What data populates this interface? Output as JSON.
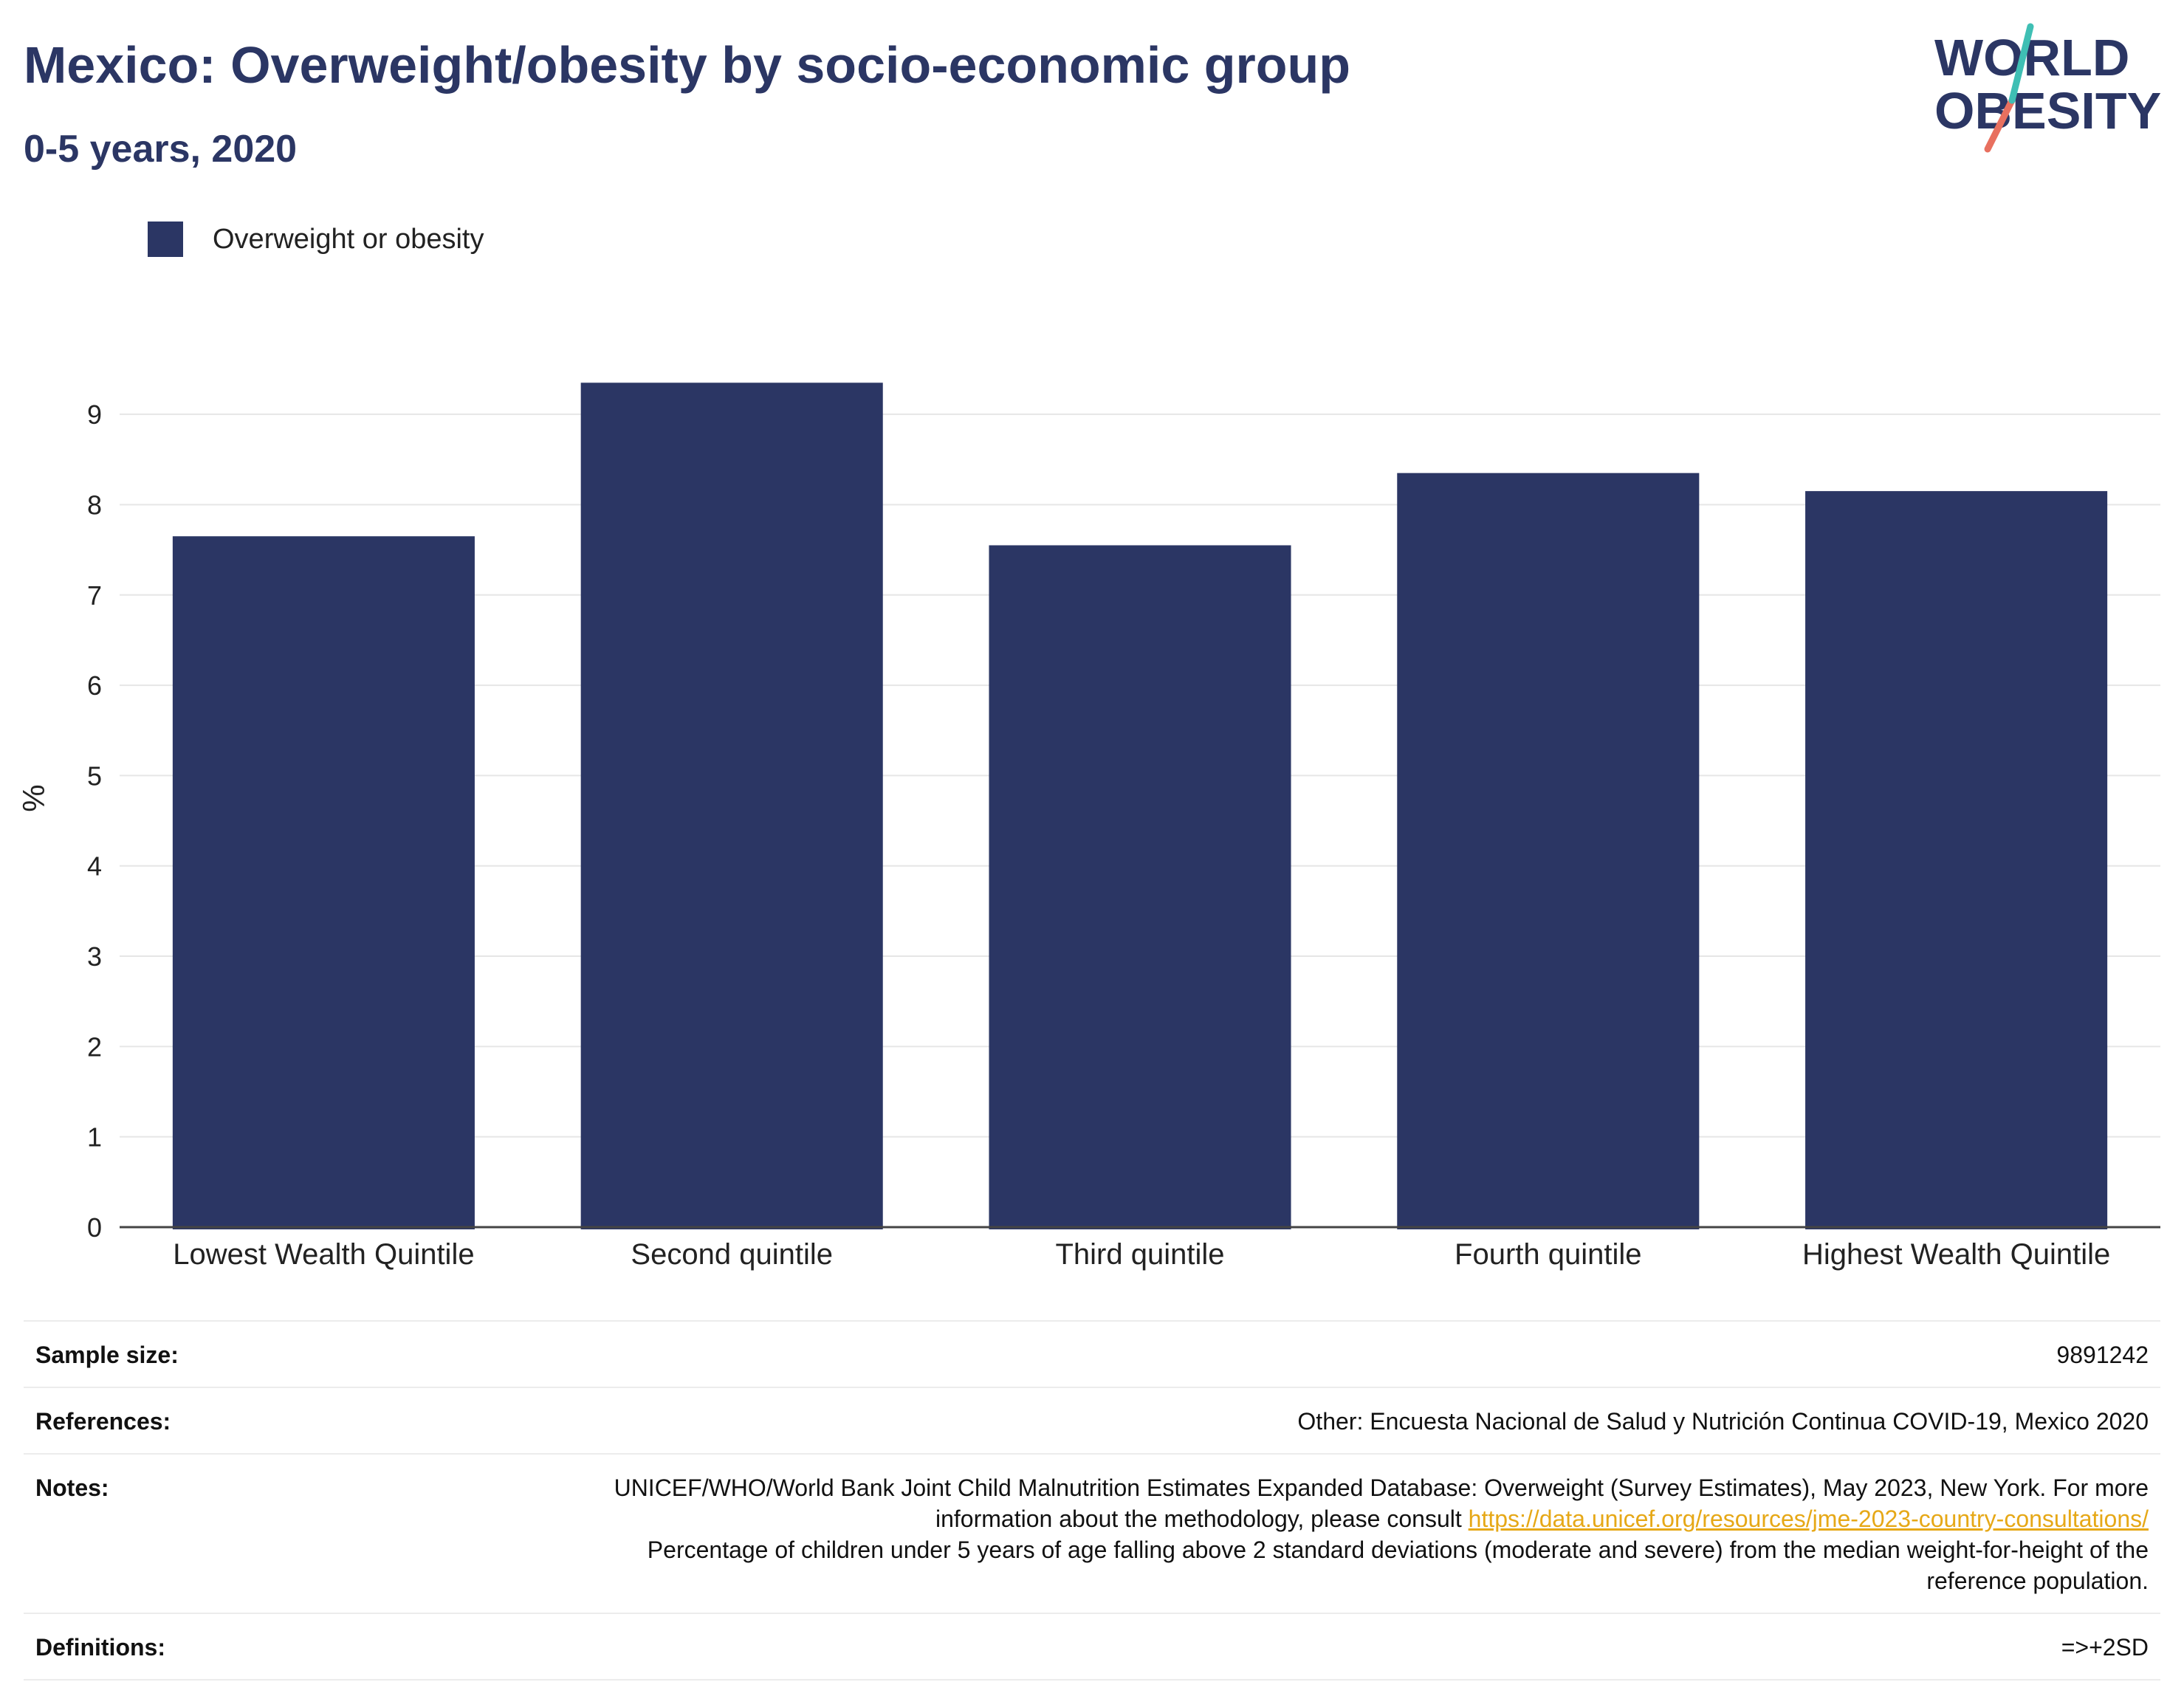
{
  "header": {
    "title": "Mexico: Overweight/obesity by socio-economic group",
    "subtitle": "0-5 years, 2020"
  },
  "logo": {
    "line1": "WORLD",
    "line2": "OBESITY",
    "colors": {
      "navy": "#2b3664",
      "teal": "#3fbfb4",
      "coral": "#e8705f"
    }
  },
  "legend": {
    "label": "Overweight or obesity",
    "color": "#2b3664"
  },
  "chart_data": {
    "type": "bar",
    "title": "Mexico: Overweight/obesity by socio-economic group",
    "subtitle": "0-5 years, 2020",
    "categories": [
      "Lowest Wealth Quintile",
      "Second quintile",
      "Third quintile",
      "Fourth quintile",
      "Highest Wealth Quintile"
    ],
    "series": [
      {
        "name": "Overweight or obesity",
        "values": [
          7.65,
          9.35,
          7.55,
          8.35,
          8.15
        ],
        "color": "#2b3664"
      }
    ],
    "xlabel": "",
    "ylabel": "%",
    "ylim": [
      0,
      9.5
    ],
    "yticks": [
      0,
      1,
      2,
      3,
      4,
      5,
      6,
      7,
      8,
      9
    ],
    "grid": true,
    "legend_position": "top-left"
  },
  "info": {
    "sample_size": {
      "label": "Sample size:",
      "value": "9891242"
    },
    "references": {
      "label": "References:",
      "value": "Other: Encuesta Nacional de Salud y Nutrición Continua COVID-19, Mexico 2020"
    },
    "notes": {
      "label": "Notes:",
      "text_before": "UNICEF/WHO/World Bank Joint Child Malnutrition Estimates Expanded Database: Overweight (Survey Estimates), May 2023, New York. For more information about the methodology, please consult ",
      "link": "https://data.unicef.org/resources/jme-2023-country-consultations/",
      "text_after": "Percentage of children under 5 years of age falling above 2 standard deviations (moderate and severe) from the median weight-for-height of the reference population."
    },
    "definitions": {
      "label": "Definitions:",
      "value": "=>+2SD"
    }
  }
}
